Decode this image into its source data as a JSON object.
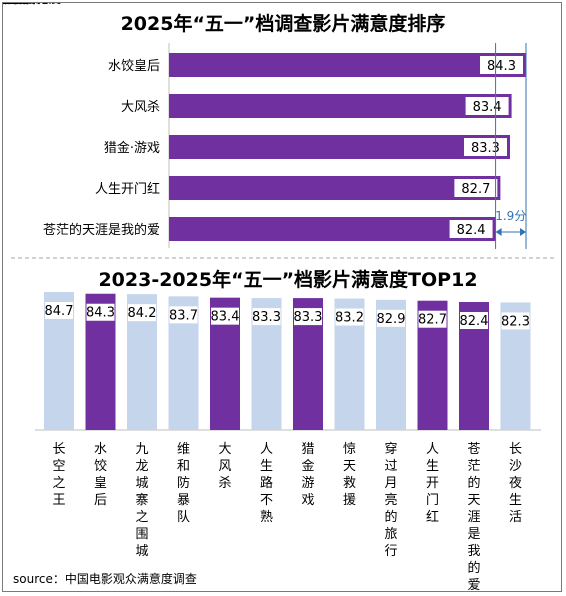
{
  "colors": {
    "purple": "#7030a0",
    "light_blue": "#c5d5ec",
    "value_box": "#ffffff",
    "diff_line": "#2f75b5",
    "divider": "#a6a6a6"
  },
  "chart_data": [
    {
      "type": "bar",
      "orientation": "horizontal",
      "title": "2025年“五一”档调查影片满意度排序",
      "categories": [
        "水饺皇后",
        "大风杀",
        "猎金·游戏",
        "人生开门红",
        "苍茫的天涯是我的爱"
      ],
      "values": [
        84.3,
        83.4,
        83.3,
        82.7,
        82.4
      ],
      "annotation": {
        "text": "1.9分",
        "from": 82.4,
        "to": 84.3
      }
    },
    {
      "type": "bar",
      "orientation": "vertical",
      "title": "2023-2025年“五一”档影片满意度TOP12",
      "categories": [
        "长空之王",
        "水饺皇后",
        "九龙城寨之围城",
        "维和防暴队",
        "大风杀",
        "人生路不熟",
        "猎金游戏",
        "惊天救援",
        "穿过月亮的旅行",
        "人生开门红",
        "苍茫的天涯是我的爱",
        "长沙夜生活"
      ],
      "values": [
        84.7,
        84.3,
        84.2,
        83.7,
        83.4,
        83.3,
        83.3,
        83.2,
        82.9,
        82.7,
        82.4,
        82.3
      ],
      "highlight": [
        false,
        true,
        false,
        false,
        true,
        false,
        true,
        false,
        false,
        true,
        true,
        false
      ]
    }
  ],
  "source": "source：中国电影观众满意度调查"
}
